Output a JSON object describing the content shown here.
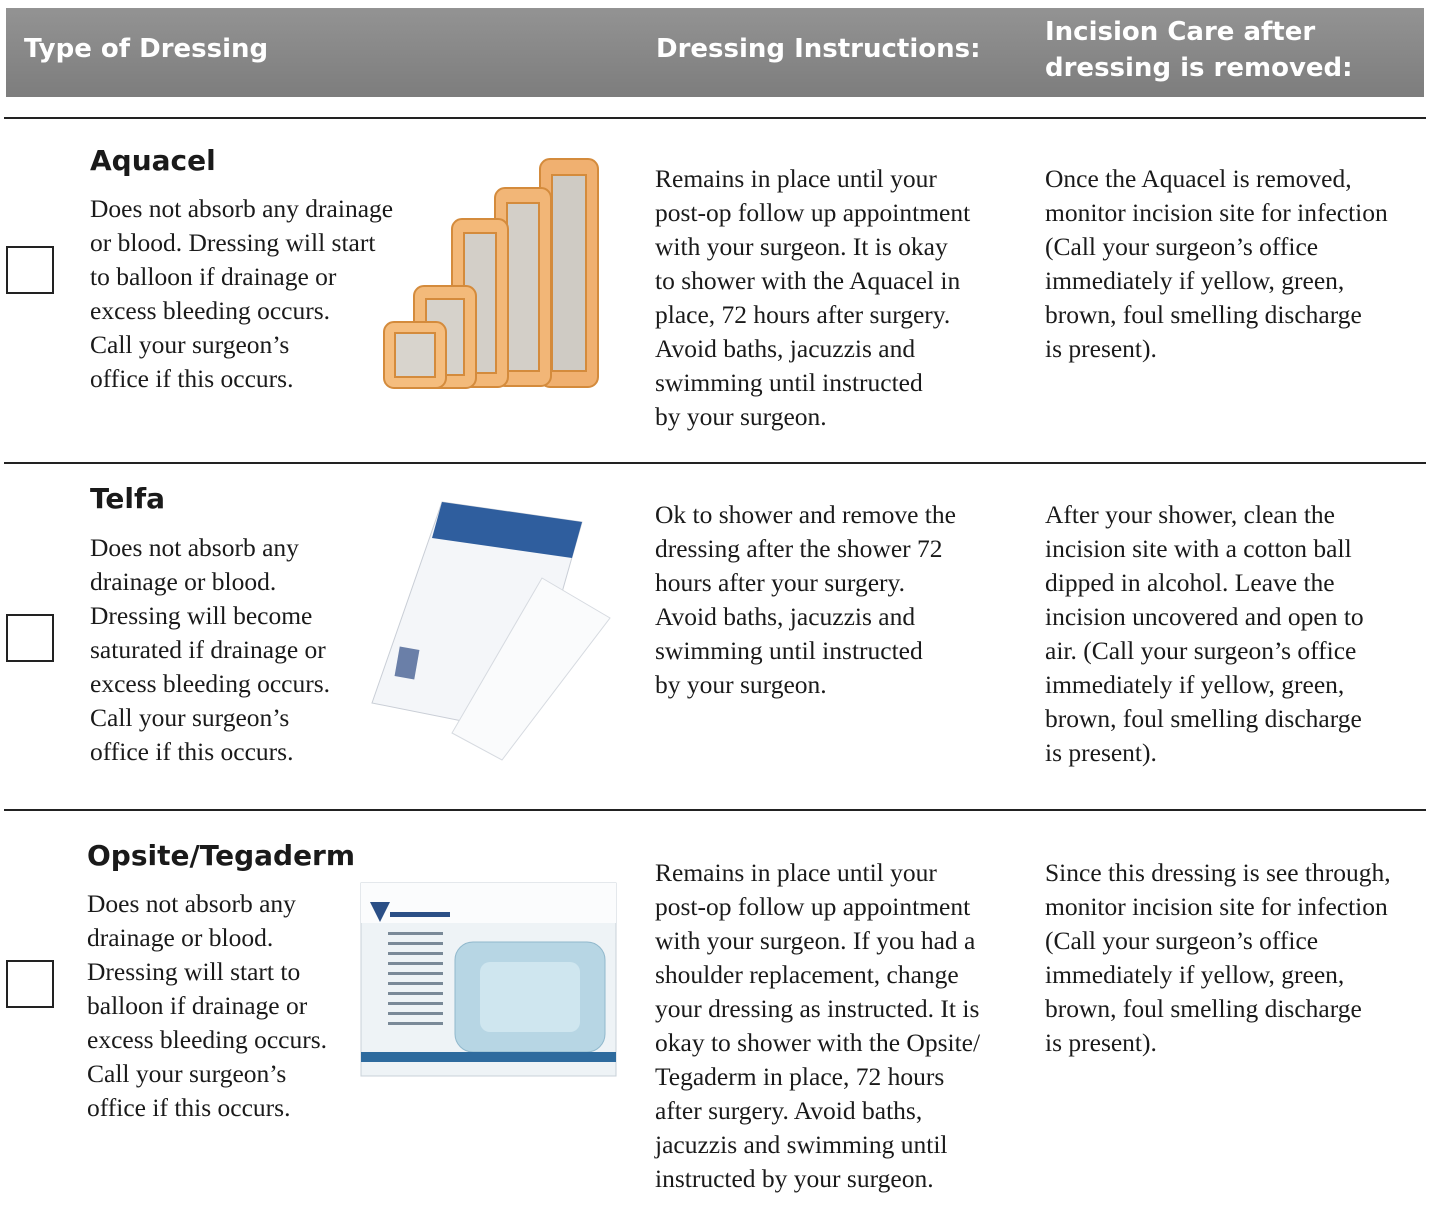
{
  "header": {
    "type": "Type of Dressing",
    "instructions": "Dressing Instructions:",
    "incision_care": [
      "Incision Care after",
      "dressing is removed:"
    ]
  },
  "rows": [
    {
      "name": "Aquacel",
      "description": [
        "Does not absorb any drainage",
        "or blood.  Dressing will start",
        "to balloon if drainage or",
        "excess bleeding occurs.",
        "Call your surgeon’s",
        "office if this occurs."
      ],
      "instructions": [
        "Remains in place until your",
        "post-op follow up appointment",
        "with your surgeon. It is okay",
        "to shower with the Aquacel in",
        "place, 72 hours after surgery.",
        "Avoid baths, jacuzzis and",
        "swimming until instructed",
        "by your surgeon."
      ],
      "incision_care": [
        "Once the Aquacel is removed,",
        "monitor incision site for infection",
        "(Call your surgeon’s office",
        "immediately if yellow, green,",
        "brown, foul smelling discharge",
        "is present)."
      ]
    },
    {
      "name": "Telfa",
      "description": [
        "Does not absorb any",
        "drainage or blood.",
        "Dressing will become",
        "saturated if drainage or",
        "excess bleeding occurs.",
        "Call your surgeon’s",
        "office if this occurs."
      ],
      "instructions": [
        "Ok to shower and remove the",
        "dressing after the shower 72",
        "hours after your surgery.",
        "Avoid baths, jacuzzis and",
        "swimming until instructed",
        "by your surgeon."
      ],
      "incision_care": [
        "After your shower, clean the",
        "incision site with a cotton ball",
        "dipped in alcohol.  Leave the",
        "incision uncovered and open to",
        "air. (Call your surgeon’s office",
        "immediately if yellow, green,",
        "brown, foul smelling discharge",
        "is present)."
      ]
    },
    {
      "name": "Opsite/Tegaderm",
      "description": [
        "Does not absorb any",
        "drainage or blood.",
        "Dressing will start to",
        "balloon if drainage or",
        "excess bleeding occurs.",
        "Call your surgeon’s",
        "office if this occurs."
      ],
      "instructions": [
        "Remains in place until your",
        "post-op follow up appointment",
        "with your surgeon. If you had a",
        "shoulder replacement, change",
        "your dressing as instructed. It is",
        "okay to shower with the Opsite/",
        "Tegaderm in place, 72 hours",
        "after surgery. Avoid baths,",
        "jacuzzis and swimming until",
        "instructed by your surgeon."
      ],
      "incision_care": [
        "Since this dressing is see through,",
        "monitor incision site for infection",
        "(Call your surgeon’s office",
        "immediately if yellow, green,",
        "brown, foul smelling discharge",
        "is present)."
      ]
    }
  ]
}
